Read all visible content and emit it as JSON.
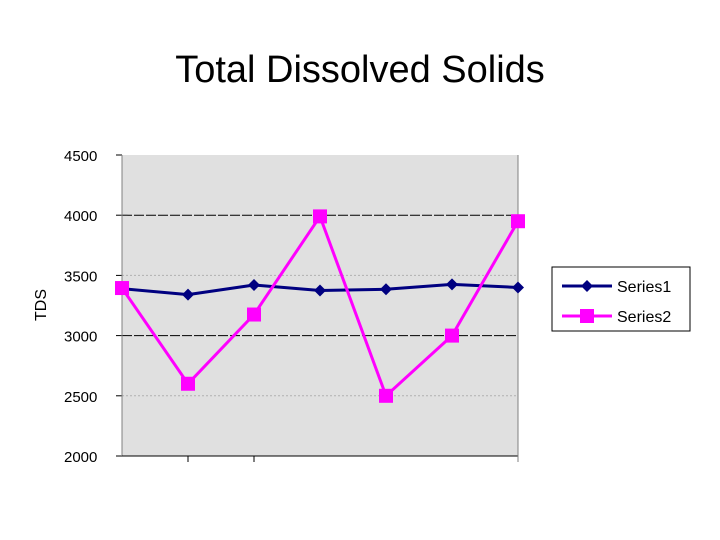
{
  "chart_data": {
    "type": "line",
    "title": "Total Dissolved Solids",
    "xlabel": "",
    "ylabel": "TDS",
    "ylim": [
      2000,
      4500
    ],
    "yticks": [
      2000,
      2500,
      3000,
      3500,
      4000,
      4500
    ],
    "x": [
      1,
      2,
      3,
      4,
      5,
      6,
      7
    ],
    "grid": "dashed horizontal at 500 intervals",
    "legend": "right",
    "plot_background": "#e0e0e0",
    "series": [
      {
        "name": "Series1",
        "marker": "diamond",
        "color": "#000080",
        "values": [
          3390,
          3340,
          3420,
          3375,
          3385,
          3425,
          3400
        ]
      },
      {
        "name": "Series2",
        "marker": "square",
        "color": "#ff00ff",
        "values": [
          3395,
          2600,
          3175,
          3990,
          2500,
          3000,
          3950
        ]
      }
    ]
  }
}
